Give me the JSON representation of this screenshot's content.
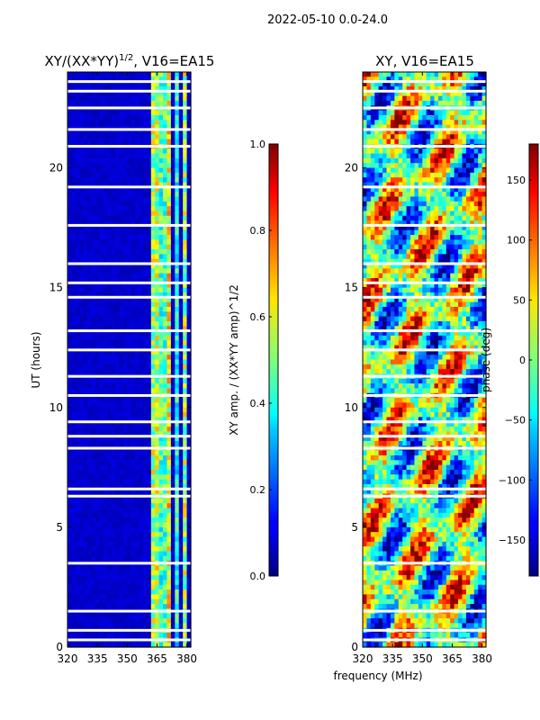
{
  "figure": {
    "suptitle": "2022-05-10 0.0-24.0",
    "xlabel": "frequency (MHz)",
    "ylabel": "UT (hours)"
  },
  "colorbars": {
    "amp": {
      "label": "XY amp. / (XX*YY amp)^1/2",
      "ticks": [
        "0.0",
        "0.2",
        "0.4",
        "0.6",
        "0.8",
        "1.0"
      ],
      "tick_values": [
        0.0,
        0.2,
        0.4,
        0.6,
        0.8,
        1.0
      ],
      "range": [
        0,
        1
      ]
    },
    "phase": {
      "label": "phase (deg)",
      "ticks": [
        "150",
        "100",
        "50",
        "0",
        "−50",
        "−100",
        "−150"
      ],
      "tick_values": [
        150,
        100,
        50,
        0,
        -50,
        -100,
        -150
      ],
      "range": [
        -180,
        180
      ]
    }
  },
  "chart_data": [
    {
      "type": "heatmap",
      "title": "XY/(XX*YY)",
      "title_exp": "1/2",
      "title_suffix": ", V16=EA15",
      "xlabel": "frequency (MHz)",
      "ylabel": "UT (hours)",
      "xlim": [
        320,
        382
      ],
      "ylim": [
        0,
        24
      ],
      "xticks": [
        "320",
        "335",
        "350",
        "365",
        "380"
      ],
      "xtick_values": [
        320,
        335,
        350,
        365,
        380
      ],
      "yticks": [
        "0",
        "5",
        "10",
        "15",
        "20"
      ],
      "ytick_values": [
        0,
        5,
        10,
        15,
        20
      ],
      "colormap": "jet",
      "value_range": [
        0,
        1
      ],
      "bands": [
        {
          "x": 364,
          "level": 0.55
        },
        {
          "x": 368,
          "level": 0.45
        },
        {
          "x": 371,
          "level": 0.6
        },
        {
          "x": 375,
          "level": 0.4
        },
        {
          "x": 379,
          "level": 0.55
        }
      ],
      "background_level": 0.05
    },
    {
      "type": "heatmap",
      "title": "XY, V16=EA15",
      "xlabel": "frequency (MHz)",
      "ylabel": "UT (hours)",
      "xlim": [
        320,
        382
      ],
      "ylim": [
        0,
        24
      ],
      "xticks": [
        "320",
        "335",
        "350",
        "365",
        "380"
      ],
      "xtick_values": [
        320,
        335,
        350,
        365,
        380
      ],
      "yticks": [
        "0",
        "5",
        "10",
        "15",
        "20"
      ],
      "ytick_values": [
        0,
        5,
        10,
        15,
        20
      ],
      "colormap": "jet",
      "value_range": [
        -180,
        180
      ]
    }
  ],
  "gaps_ut": [
    0.3,
    0.7,
    1.5,
    3.5,
    6.3,
    6.6,
    8.3,
    8.8,
    9.4,
    10.5,
    11.3,
    12.4,
    13.2,
    14.6,
    15.2,
    16.0,
    17.6,
    19.2,
    20.9,
    21.6,
    22.5,
    23.2,
    23.6
  ]
}
